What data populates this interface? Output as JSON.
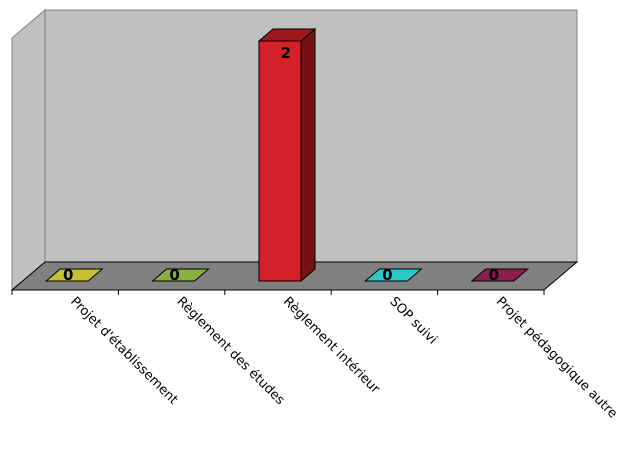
{
  "chart_data": {
    "type": "bar",
    "categories": [
      "Projet d'établissement",
      "Règlement des études",
      "Règlement intérieur",
      "SOP suivi",
      "Projet pédagogique autre"
    ],
    "values": [
      0,
      0,
      2,
      0,
      0
    ],
    "ylim": [
      0,
      2
    ],
    "colors": [
      "#c8c032",
      "#86b040",
      "#d42028",
      "#2cc8c8",
      "#8a2050"
    ],
    "title": "",
    "xlabel": "",
    "ylabel": "",
    "grid": false,
    "legend": "none"
  }
}
